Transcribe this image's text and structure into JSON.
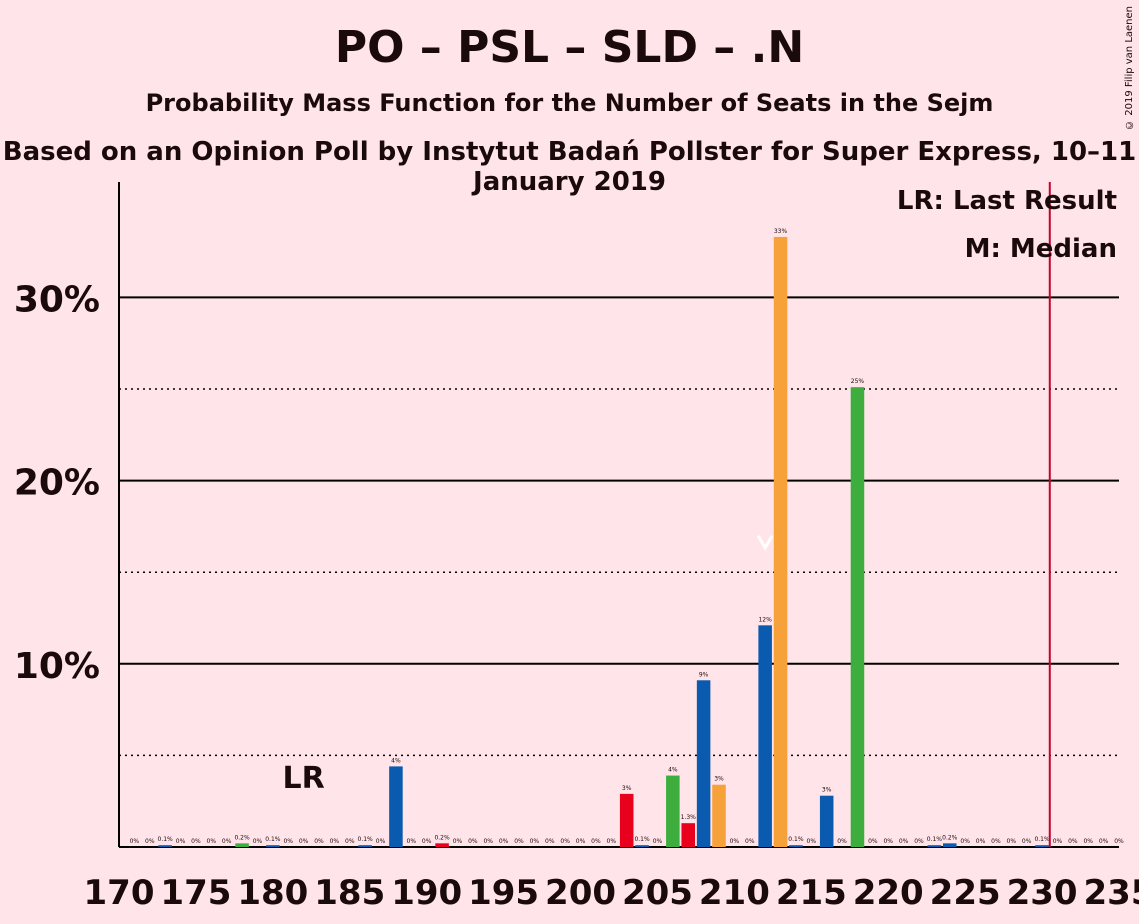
{
  "header": {
    "title": "PO – PSL – SLD – .N",
    "subtitle": "Probability Mass Function for the Number of Seats in the Sejm",
    "subtitle2": "Based on an Opinion Poll by Instytut Badań Pollster for Super Express, 10–11 January 2019",
    "copyright": "© 2019 Filip van Laenen"
  },
  "chart_data": {
    "type": "bar",
    "xlim": [
      170,
      235
    ],
    "ylim": [
      0,
      36
    ],
    "x_ticks": [
      "170",
      "175",
      "180",
      "185",
      "190",
      "195",
      "200",
      "205",
      "210",
      "215",
      "220",
      "225",
      "230",
      "235"
    ],
    "y_ticks": [
      {
        "value": 10,
        "label": "10%"
      },
      {
        "value": 20,
        "label": "20%"
      },
      {
        "value": 30,
        "label": "30%"
      }
    ],
    "dotted_gridlines": [
      5,
      15,
      25
    ],
    "legend": [
      "LR: Last Result",
      "M: Median"
    ],
    "last_result": {
      "x": 182,
      "label": "LR"
    },
    "median": {
      "x": 212
    },
    "majority_line": {
      "x": 230.5,
      "color": "#C8002D"
    },
    "colors": {
      "blue": "#0A5BB0",
      "orange": "#F7A13B",
      "green": "#3DAE3D",
      "red": "#E8001C"
    },
    "bars": [
      {
        "x": 171,
        "value": 0,
        "label": "0%",
        "color": "#0A5BB0"
      },
      {
        "x": 172,
        "value": 0,
        "label": "0%",
        "color": "#0A5BB0"
      },
      {
        "x": 173,
        "value": 0.1,
        "label": "0.1%",
        "color": "#0A5BB0"
      },
      {
        "x": 174,
        "value": 0,
        "label": "0%",
        "color": "#0A5BB0"
      },
      {
        "x": 175,
        "value": 0,
        "label": "0%",
        "color": "#0A5BB0"
      },
      {
        "x": 176,
        "value": 0,
        "label": "0%",
        "color": "#0A5BB0"
      },
      {
        "x": 177,
        "value": 0,
        "label": "0%",
        "color": "#0A5BB0"
      },
      {
        "x": 178,
        "value": 0.2,
        "label": "0.2%",
        "color": "#3DAE3D"
      },
      {
        "x": 179,
        "value": 0,
        "label": "0%",
        "color": "#0A5BB0"
      },
      {
        "x": 180,
        "value": 0.1,
        "label": "0.1%",
        "color": "#0A5BB0"
      },
      {
        "x": 181,
        "value": 0,
        "label": "0%",
        "color": "#0A5BB0"
      },
      {
        "x": 182,
        "value": 0,
        "label": "0%",
        "color": "#0A5BB0"
      },
      {
        "x": 183,
        "value": 0,
        "label": "0%",
        "color": "#0A5BB0"
      },
      {
        "x": 184,
        "value": 0,
        "label": "0%",
        "color": "#0A5BB0"
      },
      {
        "x": 185,
        "value": 0,
        "label": "0%",
        "color": "#0A5BB0"
      },
      {
        "x": 186,
        "value": 0.1,
        "label": "0.1%",
        "color": "#0A5BB0"
      },
      {
        "x": 187,
        "value": 0,
        "label": "0%",
        "color": "#0A5BB0"
      },
      {
        "x": 188,
        "value": 4.4,
        "label": "4%",
        "color": "#0A5BB0"
      },
      {
        "x": 189,
        "value": 0,
        "label": "0%",
        "color": "#0A5BB0"
      },
      {
        "x": 190,
        "value": 0,
        "label": "0%",
        "color": "#0A5BB0"
      },
      {
        "x": 191,
        "value": 0.2,
        "label": "0.2%",
        "color": "#E8001C"
      },
      {
        "x": 192,
        "value": 0,
        "label": "0%",
        "color": "#0A5BB0"
      },
      {
        "x": 193,
        "value": 0,
        "label": "0%",
        "color": "#0A5BB0"
      },
      {
        "x": 194,
        "value": 0,
        "label": "0%",
        "color": "#0A5BB0"
      },
      {
        "x": 195,
        "value": 0,
        "label": "0%",
        "color": "#0A5BB0"
      },
      {
        "x": 196,
        "value": 0,
        "label": "0%",
        "color": "#0A5BB0"
      },
      {
        "x": 197,
        "value": 0,
        "label": "0%",
        "color": "#0A5BB0"
      },
      {
        "x": 198,
        "value": 0,
        "label": "0%",
        "color": "#0A5BB0"
      },
      {
        "x": 199,
        "value": 0,
        "label": "0%",
        "color": "#0A5BB0"
      },
      {
        "x": 200,
        "value": 0,
        "label": "0%",
        "color": "#0A5BB0"
      },
      {
        "x": 201,
        "value": 0,
        "label": "0%",
        "color": "#0A5BB0"
      },
      {
        "x": 202,
        "value": 0,
        "label": "0%",
        "color": "#0A5BB0"
      },
      {
        "x": 203,
        "value": 2.9,
        "label": "3%",
        "color": "#E8001C"
      },
      {
        "x": 204,
        "value": 0.1,
        "label": "0.1%",
        "color": "#0A5BB0"
      },
      {
        "x": 205,
        "value": 0,
        "label": "0%",
        "color": "#0A5BB0"
      },
      {
        "x": 206,
        "value": 3.9,
        "label": "4%",
        "color": "#3DAE3D"
      },
      {
        "x": 207,
        "value": 1.3,
        "label": "1.3%",
        "color": "#E8001C"
      },
      {
        "x": 208,
        "value": 9.1,
        "label": "9%",
        "color": "#0A5BB0"
      },
      {
        "x": 209,
        "value": 3.4,
        "label": "3%",
        "color": "#F7A13B"
      },
      {
        "x": 210,
        "value": 0,
        "label": "0%",
        "color": "#0A5BB0"
      },
      {
        "x": 211,
        "value": 0,
        "label": "0%",
        "color": "#0A5BB0"
      },
      {
        "x": 212,
        "value": 12.1,
        "label": "12%",
        "color": "#0A5BB0"
      },
      {
        "x": 213,
        "value": 33.3,
        "label": "33%",
        "color": "#F7A13B"
      },
      {
        "x": 214,
        "value": 0.1,
        "label": "0.1%",
        "color": "#0A5BB0"
      },
      {
        "x": 215,
        "value": 0,
        "label": "0%",
        "color": "#0A5BB0"
      },
      {
        "x": 216,
        "value": 2.8,
        "label": "3%",
        "color": "#0A5BB0"
      },
      {
        "x": 217,
        "value": 0,
        "label": "0%",
        "color": "#0A5BB0"
      },
      {
        "x": 218,
        "value": 25.1,
        "label": "25%",
        "color": "#3DAE3D"
      },
      {
        "x": 219,
        "value": 0,
        "label": "0%",
        "color": "#0A5BB0"
      },
      {
        "x": 220,
        "value": 0,
        "label": "0%",
        "color": "#0A5BB0"
      },
      {
        "x": 221,
        "value": 0,
        "label": "0%",
        "color": "#0A5BB0"
      },
      {
        "x": 222,
        "value": 0,
        "label": "0%",
        "color": "#0A5BB0"
      },
      {
        "x": 223,
        "value": 0.1,
        "label": "0.1%",
        "color": "#0A5BB0"
      },
      {
        "x": 224,
        "value": 0.2,
        "label": "0.2%",
        "color": "#0A5BB0"
      },
      {
        "x": 225,
        "value": 0,
        "label": "0%",
        "color": "#0A5BB0"
      },
      {
        "x": 226,
        "value": 0,
        "label": "0%",
        "color": "#0A5BB0"
      },
      {
        "x": 227,
        "value": 0,
        "label": "0%",
        "color": "#0A5BB0"
      },
      {
        "x": 228,
        "value": 0,
        "label": "0%",
        "color": "#0A5BB0"
      },
      {
        "x": 229,
        "value": 0,
        "label": "0%",
        "color": "#0A5BB0"
      },
      {
        "x": 230,
        "value": 0.1,
        "label": "0.1%",
        "color": "#0A5BB0"
      },
      {
        "x": 231,
        "value": 0,
        "label": "0%",
        "color": "#0A5BB0"
      },
      {
        "x": 232,
        "value": 0,
        "label": "0%",
        "color": "#0A5BB0"
      },
      {
        "x": 233,
        "value": 0,
        "label": "0%",
        "color": "#0A5BB0"
      },
      {
        "x": 234,
        "value": 0,
        "label": "0%",
        "color": "#0A5BB0"
      },
      {
        "x": 235,
        "value": 0,
        "label": "0%",
        "color": "#0A5BB0"
      }
    ]
  }
}
